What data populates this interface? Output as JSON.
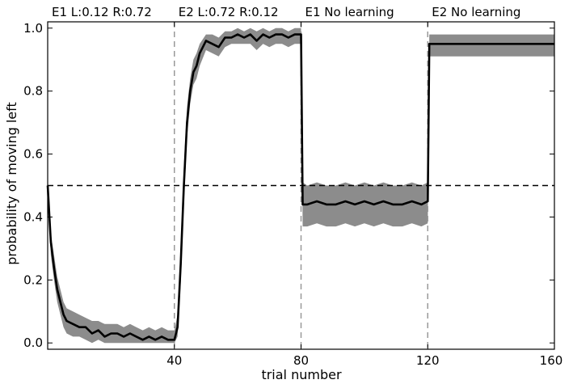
{
  "chart_data": {
    "type": "line",
    "xlabel": "trial number",
    "ylabel": "probability of moving left",
    "xlim": [
      0,
      160
    ],
    "ylim": [
      -0.02,
      1.02
    ],
    "x_ticks": [
      40,
      80,
      120,
      160
    ],
    "y_ticks": [
      0.0,
      0.2,
      0.4,
      0.6,
      0.8,
      1.0
    ],
    "y_tick_labels": [
      "0.0",
      "0.2",
      "0.4",
      "0.6",
      "0.8",
      "1.0"
    ],
    "grid": false,
    "reference_line_y": 0.5,
    "phase_boundaries": [
      40,
      80,
      120
    ],
    "phase_labels": [
      {
        "x": 0,
        "text": "E1   L:0.12  R:0.72"
      },
      {
        "x": 40,
        "text": "E2   L:0.72  R:0.12"
      },
      {
        "x": 80,
        "text": "E1    No learning"
      },
      {
        "x": 120,
        "text": "E2    No learning"
      }
    ],
    "colors": {
      "mean": "#000000",
      "band": "#8c8c8c",
      "reference": "#000000",
      "boundary": "#999999"
    },
    "series": [
      {
        "x": [
          0,
          1,
          2,
          3,
          4,
          5,
          6,
          8,
          10,
          12,
          14,
          16,
          18,
          20,
          22,
          24,
          26,
          28,
          30,
          32,
          34,
          36,
          38,
          40,
          41,
          42,
          43,
          44,
          45,
          46,
          47,
          48,
          50,
          52,
          54,
          56,
          58,
          60,
          62,
          64,
          66,
          68,
          70,
          72,
          74,
          76,
          78,
          80,
          80.5,
          82,
          85,
          88,
          91,
          94,
          97,
          100,
          103,
          106,
          109,
          112,
          115,
          118,
          120,
          120.5,
          122,
          126,
          130,
          134,
          138,
          142,
          146,
          150,
          154,
          158,
          160
        ],
        "values": [
          0.5,
          0.32,
          0.24,
          0.17,
          0.13,
          0.09,
          0.07,
          0.06,
          0.05,
          0.05,
          0.03,
          0.04,
          0.02,
          0.03,
          0.03,
          0.02,
          0.03,
          0.02,
          0.01,
          0.02,
          0.01,
          0.02,
          0.01,
          0.01,
          0.05,
          0.25,
          0.5,
          0.7,
          0.8,
          0.86,
          0.88,
          0.92,
          0.96,
          0.95,
          0.94,
          0.97,
          0.97,
          0.98,
          0.97,
          0.98,
          0.96,
          0.98,
          0.97,
          0.98,
          0.98,
          0.97,
          0.98,
          0.98,
          0.44,
          0.44,
          0.45,
          0.44,
          0.44,
          0.45,
          0.44,
          0.45,
          0.44,
          0.45,
          0.44,
          0.44,
          0.45,
          0.44,
          0.45,
          0.95,
          0.95,
          0.95,
          0.95,
          0.95,
          0.95,
          0.95,
          0.95,
          0.95,
          0.95,
          0.95,
          0.95
        ],
        "upper": [
          0.52,
          0.35,
          0.28,
          0.21,
          0.17,
          0.13,
          0.11,
          0.1,
          0.09,
          0.08,
          0.07,
          0.07,
          0.06,
          0.06,
          0.06,
          0.05,
          0.06,
          0.05,
          0.04,
          0.05,
          0.04,
          0.05,
          0.04,
          0.04,
          0.09,
          0.31,
          0.56,
          0.75,
          0.84,
          0.9,
          0.92,
          0.95,
          0.98,
          0.98,
          0.97,
          0.99,
          0.99,
          1.0,
          0.99,
          1.0,
          0.99,
          1.0,
          0.99,
          1.0,
          1.0,
          0.99,
          1.0,
          1.0,
          0.51,
          0.5,
          0.51,
          0.5,
          0.5,
          0.51,
          0.5,
          0.51,
          0.5,
          0.51,
          0.5,
          0.5,
          0.51,
          0.5,
          0.51,
          0.98,
          0.98,
          0.98,
          0.98,
          0.98,
          0.98,
          0.98,
          0.98,
          0.98,
          0.98,
          0.98,
          0.98
        ],
        "lower": [
          0.48,
          0.28,
          0.2,
          0.13,
          0.09,
          0.05,
          0.03,
          0.02,
          0.02,
          0.01,
          0.0,
          0.01,
          0.0,
          0.0,
          0.0,
          0.0,
          0.0,
          0.0,
          0.0,
          0.0,
          0.0,
          0.0,
          0.0,
          0.0,
          0.02,
          0.19,
          0.44,
          0.65,
          0.76,
          0.82,
          0.84,
          0.88,
          0.93,
          0.92,
          0.91,
          0.94,
          0.95,
          0.95,
          0.95,
          0.95,
          0.93,
          0.95,
          0.94,
          0.95,
          0.95,
          0.94,
          0.95,
          0.95,
          0.37,
          0.37,
          0.38,
          0.37,
          0.37,
          0.38,
          0.37,
          0.38,
          0.37,
          0.38,
          0.37,
          0.37,
          0.38,
          0.37,
          0.38,
          0.91,
          0.91,
          0.91,
          0.91,
          0.91,
          0.91,
          0.91,
          0.91,
          0.91,
          0.91,
          0.91,
          0.91
        ]
      }
    ]
  }
}
